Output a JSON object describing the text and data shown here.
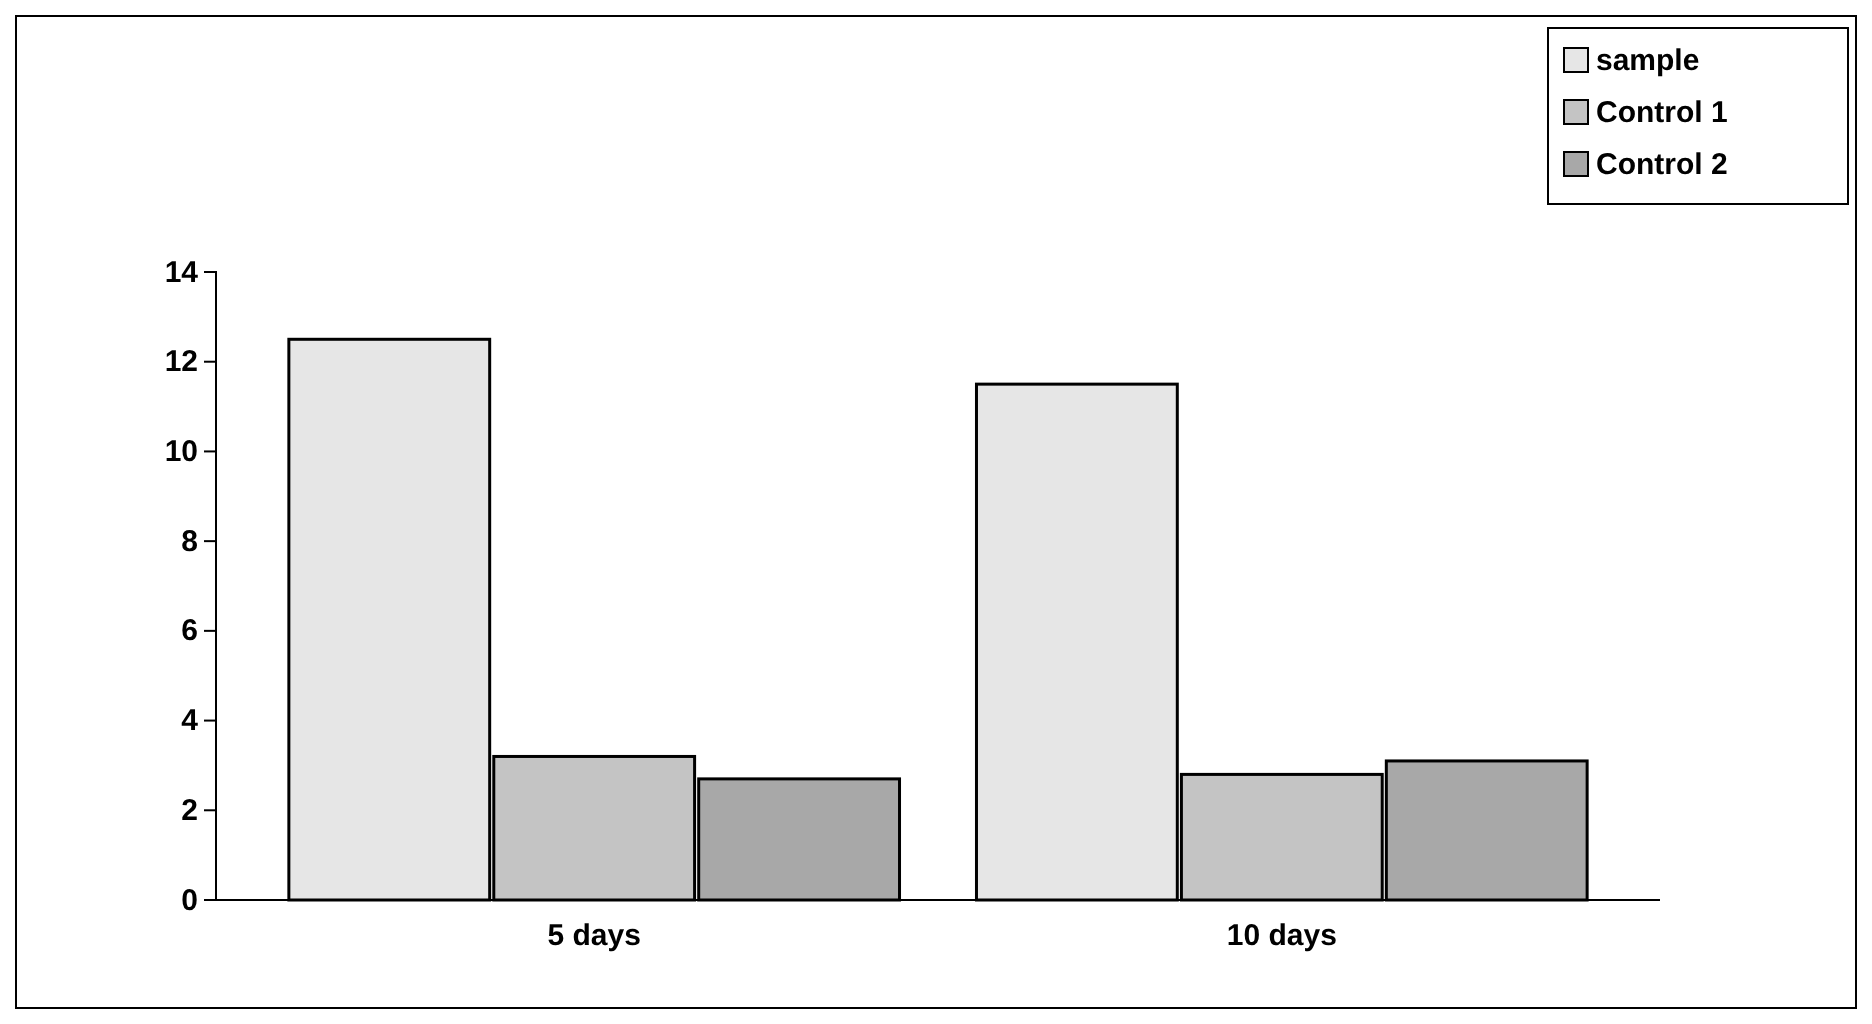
{
  "chart_data": {
    "type": "bar",
    "categories": [
      "5 days",
      "10 days"
    ],
    "series": [
      {
        "name": "sample",
        "color": "#e6e6e6",
        "values": [
          12.5,
          11.5
        ]
      },
      {
        "name": "Control  1",
        "color": "#c4c4c4",
        "values": [
          3.2,
          2.8
        ]
      },
      {
        "name": "Control  2",
        "color": "#a8a8a8",
        "values": [
          2.7,
          3.1
        ]
      }
    ],
    "ylim": [
      0,
      14
    ],
    "yticks": [
      0,
      2,
      4,
      6,
      8,
      10,
      12,
      14
    ],
    "grid": false,
    "legend": "top right"
  }
}
